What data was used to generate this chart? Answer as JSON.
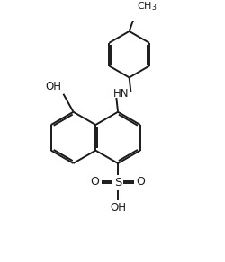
{
  "bg_color": "#ffffff",
  "line_color": "#1a1a1a",
  "line_width": 1.4,
  "figsize": [
    2.5,
    2.92
  ],
  "dpi": 100,
  "xlim": [
    0,
    10
  ],
  "ylim": [
    0,
    11.68
  ]
}
